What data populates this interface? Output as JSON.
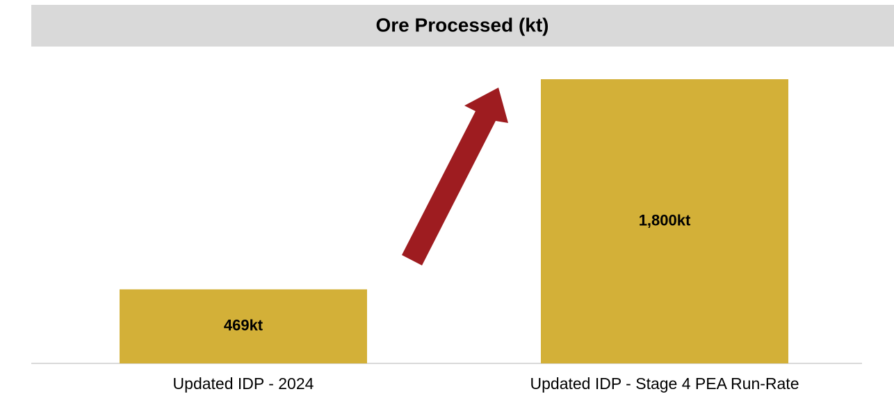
{
  "chart_data": {
    "type": "bar",
    "title": "Ore Processed (kt)",
    "categories": [
      "Updated IDP - 2024",
      "Updated IDP - Stage 4 PEA Run-Rate"
    ],
    "values": [
      469,
      1800
    ],
    "value_labels": [
      "469kt",
      "1,800kt"
    ],
    "color": "#d3b038"
  }
}
